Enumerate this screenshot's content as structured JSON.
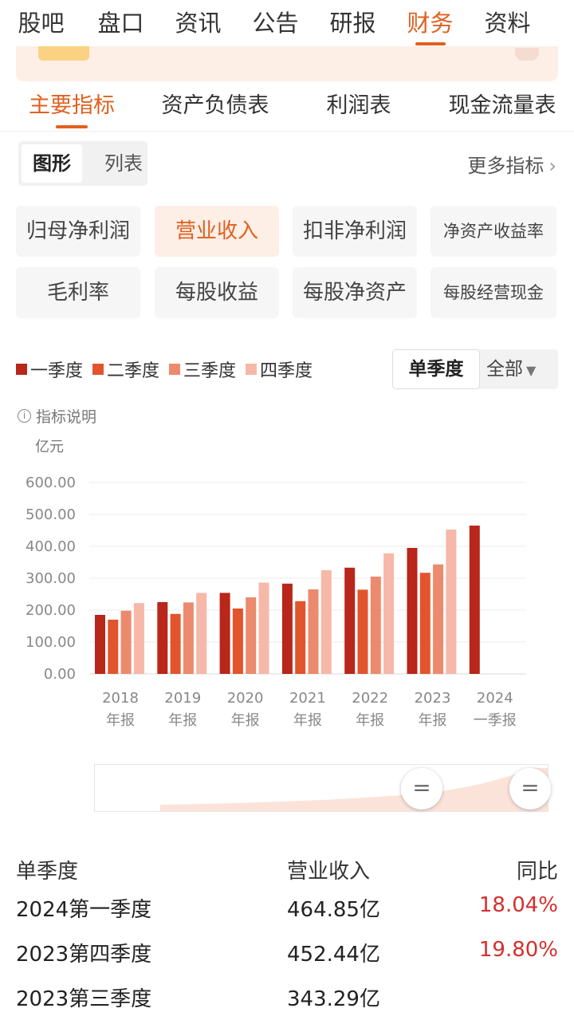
{
  "top_tabs": [
    "股吧",
    "盘口",
    "资讯",
    "公告",
    "研报",
    "财务",
    "资料"
  ],
  "top_tabs_active": "财务",
  "sub_tabs": [
    "主要指标",
    "资产负债表",
    "利润表",
    "现金流量表"
  ],
  "view_toggle": {
    "graph": "图形",
    "list": "列表"
  },
  "more_metrics": "更多指标",
  "metrics": [
    "归母净利润",
    "营业收入",
    "扣非净利润",
    "净资产收益率",
    "毛利率",
    "每股收益",
    "每股净资产",
    "每股经营现金"
  ],
  "metrics_active": "营业收入",
  "legend": [
    "一季度",
    "二季度",
    "三季度",
    "四季度"
  ],
  "quarter_mode": {
    "single": "单季度",
    "all": "全部"
  },
  "metric_note": "指标说明",
  "colors": {
    "accent": "#e0601f",
    "q1": "#b9261a",
    "q2": "#e2542c",
    "q3": "#ec8a6e",
    "q4": "#f6b8a8",
    "positive": "#d4302d"
  },
  "chart_data": {
    "type": "bar",
    "unit": "亿元",
    "ylim": [
      0,
      600
    ],
    "yticks": [
      "600.00",
      "500.00",
      "400.00",
      "300.00",
      "200.00",
      "100.00",
      "0.00"
    ],
    "categories": [
      {
        "year": "2018",
        "label": "年报"
      },
      {
        "year": "2019",
        "label": "年报"
      },
      {
        "year": "2020",
        "label": "年报"
      },
      {
        "year": "2021",
        "label": "年报"
      },
      {
        "year": "2022",
        "label": "年报"
      },
      {
        "year": "2023",
        "label": "年报"
      },
      {
        "year": "2024",
        "label": "一季报"
      }
    ],
    "series": [
      {
        "name": "一季度",
        "values": [
          185,
          225,
          254,
          283,
          333,
          395,
          464.85
        ]
      },
      {
        "name": "二季度",
        "values": [
          170,
          188,
          205,
          228,
          264,
          317,
          null
        ]
      },
      {
        "name": "三季度",
        "values": [
          198,
          224,
          240,
          265,
          305,
          343.29,
          null
        ]
      },
      {
        "name": "四季度",
        "values": [
          222,
          254,
          286,
          325,
          378,
          452.44,
          null
        ]
      }
    ],
    "grid": true
  },
  "table": {
    "headers": [
      "单季度",
      "营业收入",
      "同比"
    ],
    "rows": [
      {
        "period": "2024第一季度",
        "revenue": "464.85亿",
        "yoy": "18.04%"
      },
      {
        "period": "2023第四季度",
        "revenue": "452.44亿",
        "yoy": "19.80%"
      },
      {
        "period": "2023第三季度",
        "revenue": "343.29亿",
        "yoy": ""
      }
    ]
  }
}
